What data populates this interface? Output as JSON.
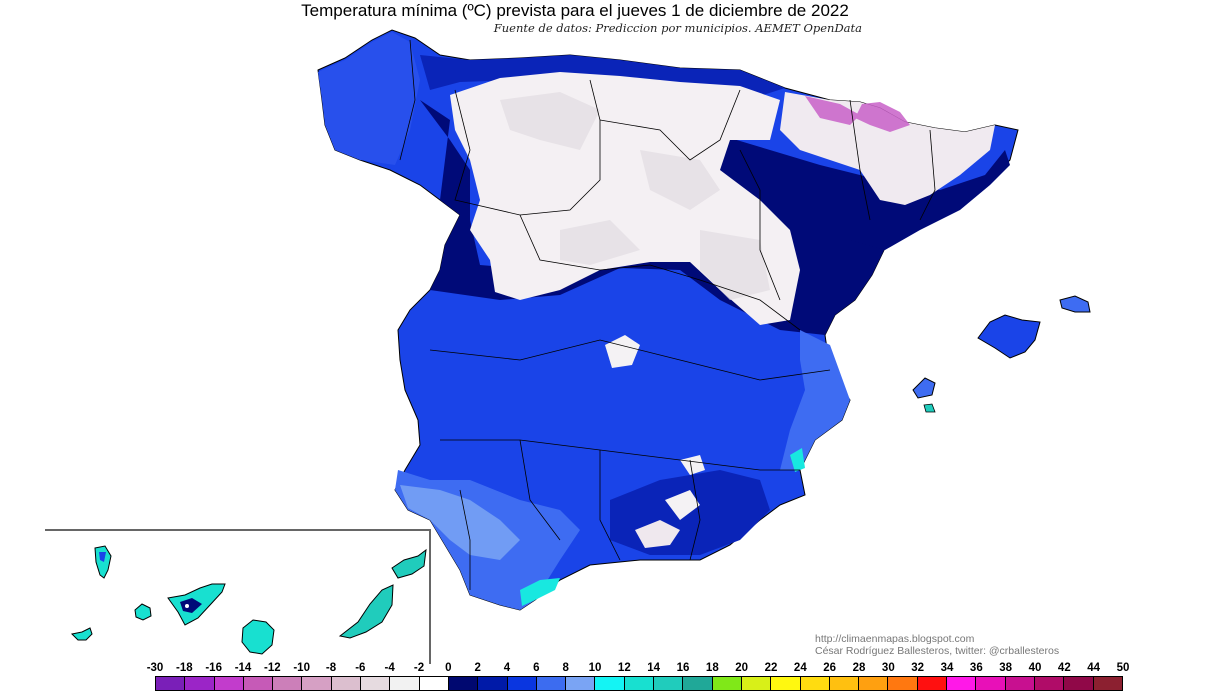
{
  "header": {
    "title": "Temperatura mínima (ºC) prevista para el jueves 1 de diciembre de 2022",
    "subtitle": "Fuente de datos: Prediccion por municipios. AEMET OpenData"
  },
  "credits": {
    "url": "http://climaenmapas.blogspot.com",
    "author": "César Rodríguez Ballesteros, twitter: @crballesteros"
  },
  "legend": {
    "unit": "ºC",
    "labels": [
      "-30",
      "-18",
      "-16",
      "-14",
      "-12",
      "-10",
      "-8",
      "-6",
      "-4",
      "-2",
      "0",
      "2",
      "4",
      "6",
      "8",
      "10",
      "12",
      "14",
      "16",
      "18",
      "20",
      "22",
      "24",
      "26",
      "28",
      "30",
      "32",
      "34",
      "36",
      "38",
      "40",
      "42",
      "44",
      "50"
    ],
    "colors": [
      "#7a1fb8",
      "#9b25c7",
      "#c23ccc",
      "#c65ab7",
      "#cc7fb9",
      "#d6a0c4",
      "#dcbfcf",
      "#e6dbe0",
      "#f2f2f2",
      "#ffffff",
      "#000870",
      "#001aa8",
      "#0a36e0",
      "#3c6cf0",
      "#7aa4f4",
      "#14f4f4",
      "#18e0d0",
      "#20ccbc",
      "#20a898",
      "#80e818",
      "#d8f018",
      "#fff810",
      "#ffdc10",
      "#ffc010",
      "#ffa010",
      "#ff7810",
      "#ff1010",
      "#ff18e8",
      "#e810b8",
      "#c81090",
      "#b00c68",
      "#900848",
      "#8c2030"
    ]
  },
  "map": {
    "region": "España peninsular, Baleares y Canarias",
    "inset": "Islas Canarias",
    "palette": {
      "sea": "#ffffff",
      "cold_white": "#f4f2f4",
      "cold_pink": "#e8dde4",
      "pyrenees_magenta": "#c860c8",
      "dark_navy": "#000a78",
      "navy": "#0a24b8",
      "blue": "#1a44e8",
      "mid_blue": "#3e6cf2",
      "light_blue": "#7aa4f4",
      "cyan": "#18e8e0",
      "teal": "#20d8c4",
      "border": "#000000"
    }
  }
}
